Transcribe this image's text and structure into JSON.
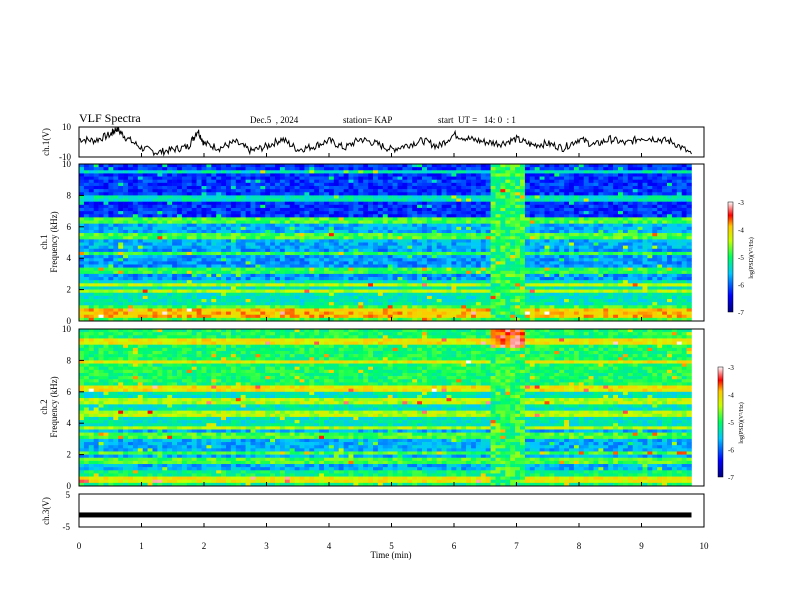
{
  "header": {
    "title": "VLF Spectra",
    "date": "Dec.5  , 2024",
    "station": "station= KAP",
    "start_time": "start  UT =   14: 0  : 1"
  },
  "axes": {
    "ch1_label": "ch.1(V)",
    "ch1_ticks": [
      "10",
      "-10"
    ],
    "spec1_label_ch": "ch.1",
    "spec2_label_ch": "ch.2",
    "freq_label": "Frequency  (kHz)",
    "freq_ticks": [
      "0",
      "2",
      "4",
      "6",
      "8",
      "10"
    ],
    "ch3_label": "ch.3(V)",
    "ch3_ticks": [
      "5",
      "-5"
    ],
    "time_label": "Time  (min)",
    "time_ticks": [
      "0",
      "1",
      "2",
      "3",
      "4",
      "5",
      "6",
      "7",
      "8",
      "9",
      "10"
    ],
    "colorbar_ticks": [
      "-3",
      "-4",
      "-5",
      "-6",
      "-7"
    ],
    "colorbar_label": "log(PSD)(V²/Hz)"
  },
  "colors": {
    "low": "#0000c8",
    "mid_low": "#00c8ff",
    "mid": "#00e040",
    "mid_high": "#ffff00",
    "high": "#ff0000",
    "top": "#ffffff"
  },
  "chart_data": [
    {
      "type": "line",
      "title": "ch.1(V)",
      "xlabel": "Time  (min)",
      "ylabel": "ch.1(V)",
      "xlim": [
        0,
        10
      ],
      "ylim": [
        -10,
        10
      ],
      "series": [
        {
          "x": [
            0,
            0.25,
            0.5,
            0.6,
            0.75,
            1,
            1.25,
            1.5,
            1.75,
            1.9,
            2,
            2.25,
            2.5,
            2.75,
            3,
            3.25,
            3.5,
            3.75,
            4,
            4.25,
            4.5,
            4.75,
            5,
            5.25,
            5.5,
            5.75,
            6,
            6.25,
            6.5,
            6.75,
            7,
            7.25,
            7.5,
            7.75,
            8,
            8.25,
            8.5,
            8.75,
            9,
            9.25,
            9.5,
            9.8
          ],
          "y": [
            2,
            1,
            5,
            9,
            3,
            -4,
            -7,
            -5,
            -3,
            8,
            -1,
            -4,
            0,
            -6,
            -3,
            2,
            -5,
            -3,
            1,
            -4,
            2,
            -1,
            -5,
            -2,
            1,
            -3,
            5,
            2,
            0,
            -1,
            2,
            -2,
            -1,
            -4,
            2,
            -2,
            2,
            -1,
            3,
            2,
            0,
            -8
          ]
        }
      ]
    },
    {
      "type": "heatmap",
      "title": "ch.1",
      "xlabel": "Time  (min)",
      "ylabel": "Frequency  (kHz)",
      "xlim": [
        0,
        10
      ],
      "ylim": [
        0,
        10
      ],
      "colorbar_range": [
        -7,
        -3
      ]
    },
    {
      "type": "heatmap",
      "title": "ch.2",
      "xlabel": "Time  (min)",
      "ylabel": "Frequency  (kHz)",
      "xlim": [
        0,
        10
      ],
      "ylim": [
        0,
        10
      ],
      "colorbar_range": [
        -7,
        -3
      ]
    },
    {
      "type": "line",
      "title": "ch.3(V)",
      "xlabel": "Time  (min)",
      "ylabel": "ch.3(V)",
      "xlim": [
        0,
        10
      ],
      "ylim": [
        -5,
        5
      ],
      "series": [
        {
          "x": [
            0,
            9.8
          ],
          "y": [
            -1.5,
            -1.5
          ]
        }
      ]
    }
  ]
}
